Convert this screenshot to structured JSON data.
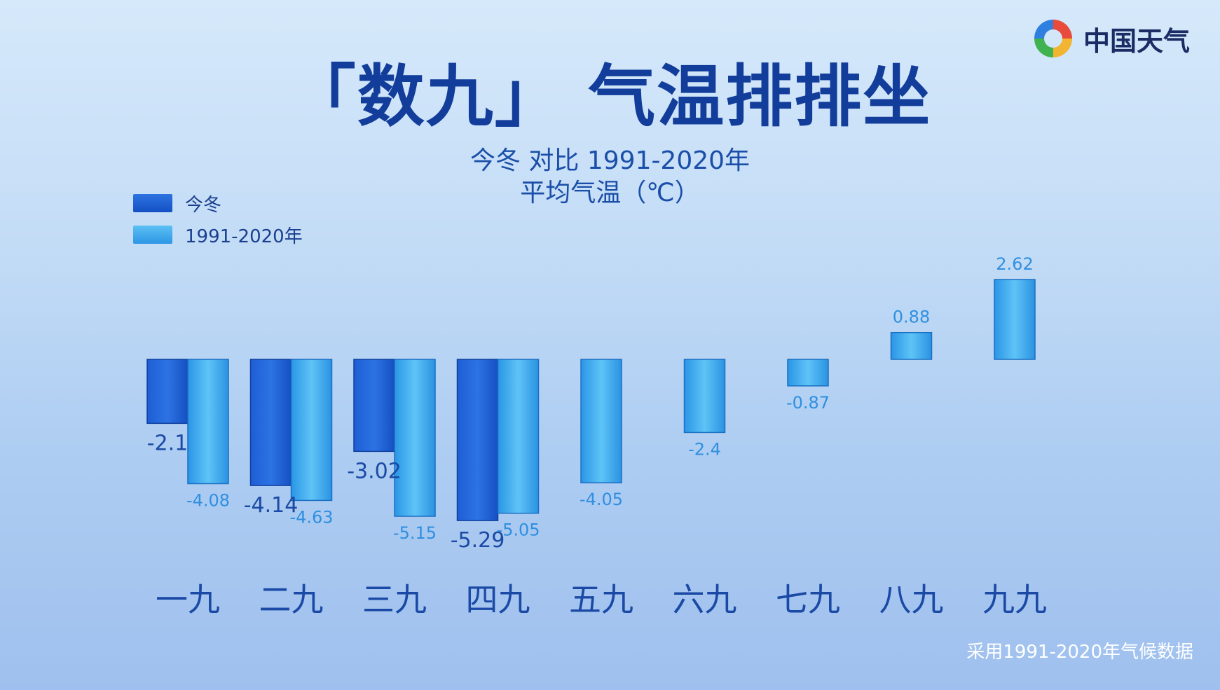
{
  "brand": {
    "name": "中国天气",
    "logo_icon": "china-weather-logo-icon"
  },
  "footnote": "采用1991-2020年气候数据",
  "colors": {
    "current": "#1a5fd6",
    "normal": "#39a6ec",
    "title": "#123d9a"
  },
  "chart_data": {
    "type": "bar",
    "title": "「数九」 气温排排坐",
    "subtitle_line1": "今冬 对比 1991-2020年",
    "subtitle_line2": "平均气温（℃）",
    "categories": [
      "一九",
      "二九",
      "三九",
      "四九",
      "五九",
      "六九",
      "七九",
      "八九",
      "九九"
    ],
    "series": [
      {
        "name": "今冬",
        "values": [
          -2.1,
          -4.14,
          -3.02,
          -5.29,
          null,
          null,
          null,
          null,
          null
        ],
        "labels": [
          "-2.1",
          "-4.14",
          "-3.02",
          "-5.29",
          "",
          "",
          "",
          "",
          ""
        ]
      },
      {
        "name": "1991-2020年",
        "values": [
          -4.08,
          -4.63,
          -5.15,
          -5.05,
          -4.05,
          -2.4,
          -0.87,
          0.88,
          2.62
        ],
        "labels": [
          "-4.08",
          "-4.63",
          "-5.15",
          "-5.05",
          "-4.05",
          "-2.4",
          "-0.87",
          "0.88",
          "2.62"
        ]
      }
    ],
    "ylim": [
      -5.29,
      2.62
    ],
    "legend_position": "top-left",
    "grid": false
  }
}
